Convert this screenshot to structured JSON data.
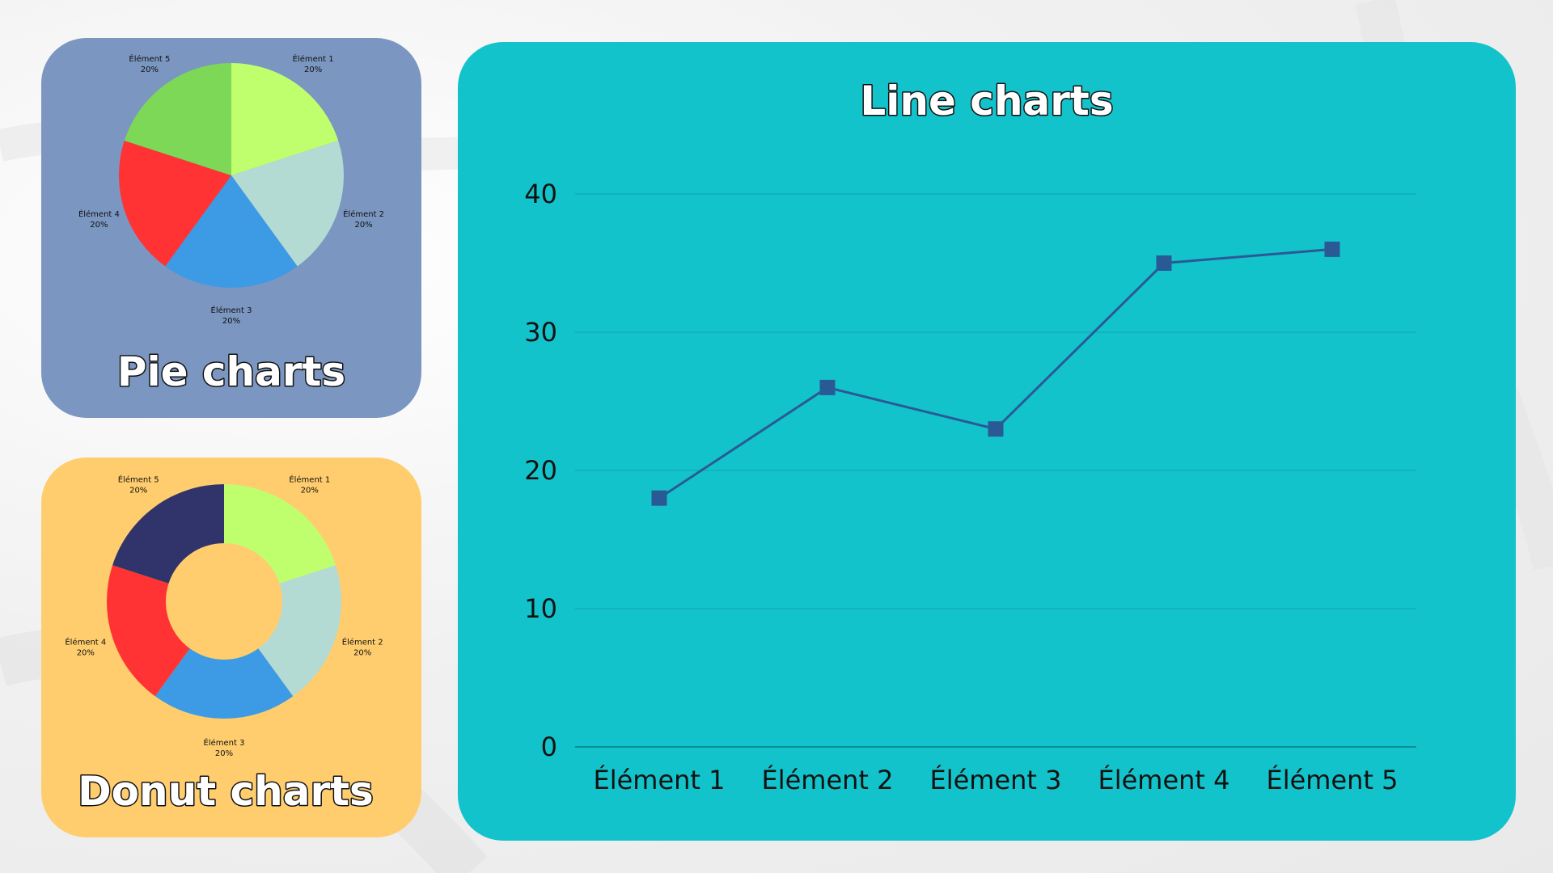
{
  "colors": {
    "pie_card_bg": "#7b96c0",
    "donut_card_bg": "#ffcd6e",
    "line_card_bg": "#13c3cb",
    "line_series": "#2a5a96",
    "grid": "#0fb0b8",
    "title_fill": "#ffffff",
    "title_outline": "#111111"
  },
  "pie_card": {
    "title": "Pie charts"
  },
  "donut_card": {
    "title": "Donut charts"
  },
  "line_card": {
    "title": "Line charts"
  },
  "chart_data": [
    {
      "type": "pie",
      "title": "Pie charts",
      "categories": [
        "Élément 1",
        "Élément 2",
        "Élément 3",
        "Élément 4",
        "Élément 5"
      ],
      "values": [
        20,
        20,
        20,
        20,
        20
      ],
      "value_labels": [
        "20%",
        "20%",
        "20%",
        "20%",
        "20%"
      ],
      "colors": [
        "#bfff6e",
        "#b3dbd4",
        "#3d9ae4",
        "#ff3333",
        "#7cd856"
      ]
    },
    {
      "type": "pie",
      "donut": true,
      "title": "Donut charts",
      "categories": [
        "Élément 1",
        "Élément 2",
        "Élément 3",
        "Élément 4",
        "Élément 5"
      ],
      "values": [
        20,
        20,
        20,
        20,
        20
      ],
      "value_labels": [
        "20%",
        "20%",
        "20%",
        "20%",
        "20%"
      ],
      "colors": [
        "#bfff6e",
        "#b3dbd4",
        "#3d9ae4",
        "#ff3333",
        "#30346a"
      ]
    },
    {
      "type": "line",
      "title": "Line charts",
      "categories": [
        "Élément 1",
        "Élément 2",
        "Élément 3",
        "Élément 4",
        "Élément 5"
      ],
      "series": [
        {
          "values": [
            18,
            26,
            23,
            35,
            36
          ]
        }
      ],
      "ylim": [
        0,
        40
      ],
      "yticks": [
        0,
        10,
        20,
        30,
        40
      ],
      "marker": "square",
      "grid": true
    }
  ]
}
